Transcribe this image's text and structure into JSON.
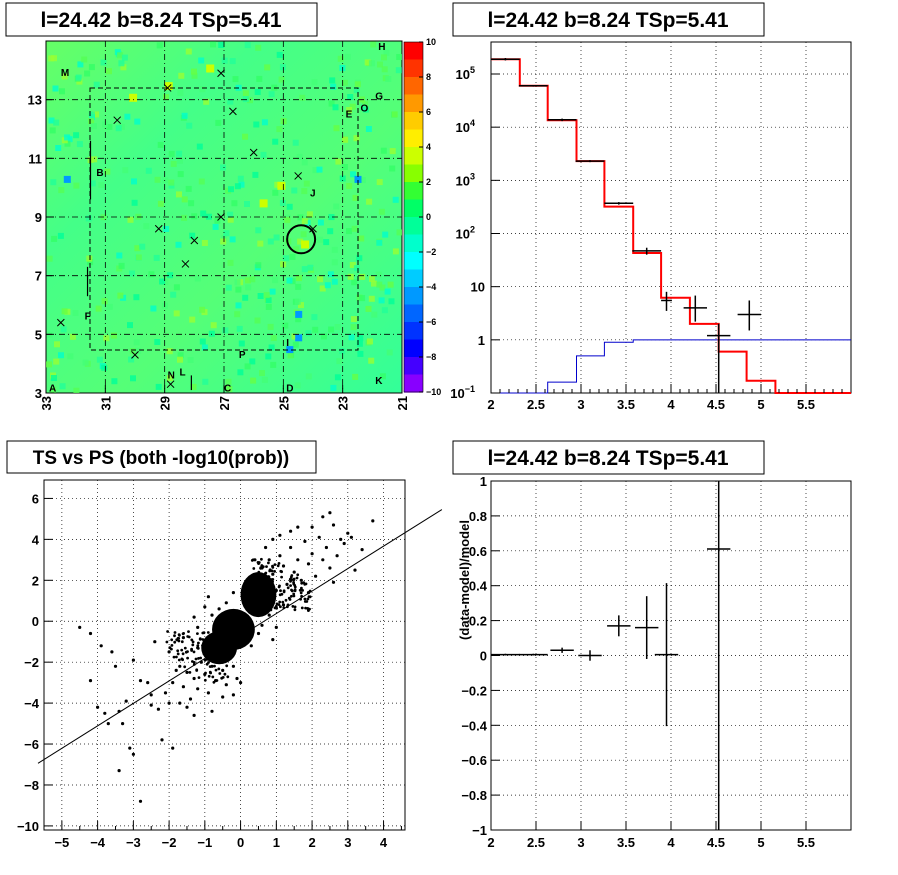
{
  "colors": {
    "model_line": "#ff0000",
    "expected_line": "#0000cc",
    "data_points": "#000000",
    "grid": "#000000"
  },
  "chart_data": [
    {
      "type": "heatmap",
      "title": "l=24.42 b=8.24 TSp=5.41",
      "xlim": [
        33,
        21
      ],
      "ylim": [
        3,
        15
      ],
      "xticks": [
        "33",
        "31",
        "29",
        "27",
        "25",
        "23",
        "21"
      ],
      "yticks": [
        "3",
        "5",
        "7",
        "9",
        "11",
        "13"
      ],
      "colorbar": {
        "range": [
          -10,
          10
        ],
        "ticks": [
          "10",
          "8",
          "6",
          "4",
          "2",
          "0",
          "−2",
          "−4",
          "−6",
          "−8",
          "−10"
        ],
        "colors": [
          "#ff0000",
          "#ff3300",
          "#ff6600",
          "#ff9900",
          "#ffcc00",
          "#ffee00",
          "#ccff00",
          "#88ff00",
          "#33ff33",
          "#00ff66",
          "#00ff99",
          "#00ffcc",
          "#00ffff",
          "#00ccff",
          "#0099ff",
          "#0066ff",
          "#0033ff",
          "#0000ff",
          "#4400ff",
          "#8800ff"
        ]
      },
      "source_labels": [
        {
          "label": "A",
          "x": 32.9,
          "y": 3.05
        },
        {
          "label": "B",
          "x": 31.3,
          "y": 10.4
        },
        {
          "label": "C",
          "x": 27.0,
          "y": 3.05
        },
        {
          "label": "D",
          "x": 24.9,
          "y": 3.05
        },
        {
          "label": "E",
          "x": 22.9,
          "y": 12.4
        },
        {
          "label": "F",
          "x": 31.7,
          "y": 5.5
        },
        {
          "label": "G",
          "x": 21.9,
          "y": 13.0
        },
        {
          "label": "H",
          "x": 21.8,
          "y": 14.7
        },
        {
          "label": "I",
          "x": 24.9,
          "y": 4.6
        },
        {
          "label": "J",
          "x": 24.1,
          "y": 9.7
        },
        {
          "label": "K",
          "x": 21.9,
          "y": 3.3
        },
        {
          "label": "L",
          "x": 28.5,
          "y": 3.6
        },
        {
          "label": "M",
          "x": 32.5,
          "y": 13.8
        },
        {
          "label": "N",
          "x": 28.9,
          "y": 3.5
        },
        {
          "label": "O",
          "x": 22.4,
          "y": 12.6
        },
        {
          "label": "P",
          "x": 26.5,
          "y": 4.2
        }
      ],
      "markers": [
        {
          "x": 32.5,
          "y": 5.4
        },
        {
          "x": 30.6,
          "y": 12.3
        },
        {
          "x": 30.0,
          "y": 4.3
        },
        {
          "x": 28.9,
          "y": 13.4
        },
        {
          "x": 29.2,
          "y": 8.6
        },
        {
          "x": 28.0,
          "y": 8.2
        },
        {
          "x": 28.3,
          "y": 7.4
        },
        {
          "x": 27.1,
          "y": 13.9
        },
        {
          "x": 27.1,
          "y": 9.0
        },
        {
          "x": 26.7,
          "y": 12.6
        },
        {
          "x": 26.0,
          "y": 11.2
        },
        {
          "x": 24.5,
          "y": 10.4
        },
        {
          "x": 24.0,
          "y": 8.6
        },
        {
          "x": 28.8,
          "y": 3.3
        }
      ],
      "circle": {
        "x": 24.4,
        "y": 8.24
      }
    },
    {
      "type": "line",
      "title": "l=24.42 b=8.24 TSp=5.41",
      "xlim": [
        2,
        6
      ],
      "ylim": [
        0.1,
        400000
      ],
      "log_y": true,
      "grid": true,
      "xticks": [
        "2",
        "2.5",
        "3",
        "3.5",
        "4",
        "4.5",
        "5",
        "5.5"
      ],
      "yticks": [
        {
          "v": 0.1,
          "base": "10",
          "exp": "−1"
        },
        {
          "v": 1,
          "base": "1"
        },
        {
          "v": 10,
          "base": "10"
        },
        {
          "v": 100,
          "base": "10",
          "exp": "2"
        },
        {
          "v": 1000,
          "base": "10",
          "exp": "3"
        },
        {
          "v": 10000,
          "base": "10",
          "exp": "4"
        },
        {
          "v": 100000,
          "base": "10",
          "exp": "5"
        }
      ],
      "bin_edges": [
        2.0,
        2.32,
        2.63,
        2.95,
        3.26,
        3.58,
        3.89,
        4.21,
        4.53,
        4.84,
        5.16,
        6.0
      ],
      "model": [
        190000,
        60000,
        13500,
        2300,
        320,
        43,
        6.2,
        2.0,
        0.6,
        0.17,
        0.1
      ],
      "expected": [
        0.1,
        0.1,
        0.16,
        0.5,
        0.9,
        1.0,
        1.0,
        1.0,
        1.0,
        1.0,
        1.0
      ],
      "data": [
        {
          "x": 2.16,
          "y": 190000,
          "ex": 0.16,
          "ey": [
            180000,
            200000
          ]
        },
        {
          "x": 2.47,
          "y": 60000,
          "ex": 0.16,
          "ey": [
            58000,
            62000
          ]
        },
        {
          "x": 2.79,
          "y": 13800,
          "ex": 0.16,
          "ey": [
            13000,
            14500
          ]
        },
        {
          "x": 3.1,
          "y": 2300,
          "ex": 0.16,
          "ey": [
            2200,
            2400
          ]
        },
        {
          "x": 3.42,
          "y": 370,
          "ex": 0.16,
          "ey": [
            350,
            390
          ]
        },
        {
          "x": 3.73,
          "y": 47,
          "ex": 0.16,
          "ey": [
            40,
            54
          ]
        },
        {
          "x": 3.95,
          "y": 5.5,
          "ex": 0.06,
          "ey": [
            3.5,
            8
          ]
        },
        {
          "x": 4.27,
          "y": 4.0,
          "ex": 0.13,
          "ey": [
            2.2,
            6.8
          ]
        },
        {
          "x": 4.53,
          "y": 1.2,
          "ex": 0.13,
          "ey": [
            0.1,
            2.0
          ]
        },
        {
          "x": 4.87,
          "y": 3.0,
          "ex": 0.13,
          "ey": [
            1.5,
            5.5
          ]
        }
      ]
    },
    {
      "type": "scatter",
      "title": "TS vs PS (both -log10(prob))",
      "xlim": [
        -5.5,
        4.6
      ],
      "ylim": [
        -10.2,
        6.9
      ],
      "grid": true,
      "xticks": [
        "−5",
        "−4",
        "−3",
        "−2",
        "−1",
        "0",
        "1",
        "2",
        "3",
        "4"
      ],
      "yticks": [
        "−10",
        "−8",
        "−6",
        "−4",
        "−2",
        "0",
        "2",
        "4",
        "6"
      ],
      "fit_line": {
        "x1": -5.5,
        "y1": -6.6,
        "x2": 5.8,
        "y2": 5.8
      },
      "points": [
        [
          -4.5,
          -0.3
        ],
        [
          -4.2,
          -0.6
        ],
        [
          -4.0,
          -4.2
        ],
        [
          -3.8,
          -4.5
        ],
        [
          -3.7,
          -5.0
        ],
        [
          -3.6,
          -1.5
        ],
        [
          -3.5,
          -2.2
        ],
        [
          -3.4,
          -4.4
        ],
        [
          -3.3,
          -5.0
        ],
        [
          -3.2,
          -3.9
        ],
        [
          -3.1,
          -6.2
        ],
        [
          -3.0,
          -6.5
        ],
        [
          -3.4,
          -7.3
        ],
        [
          -2.8,
          -8.8
        ],
        [
          -2.6,
          -3.0
        ],
        [
          -2.5,
          -4.1
        ],
        [
          -2.3,
          -4.3
        ],
        [
          -2.2,
          -5.8
        ],
        [
          -2.1,
          -3.5
        ],
        [
          -2.0,
          -4.0
        ],
        [
          -1.9,
          -6.2
        ],
        [
          -1.9,
          -3.0
        ],
        [
          -1.8,
          -2.4
        ],
        [
          -1.7,
          -4.0
        ],
        [
          -1.6,
          -3.2
        ],
        [
          -1.5,
          -2.5
        ],
        [
          -1.5,
          -4.2
        ],
        [
          -1.4,
          -3.8
        ],
        [
          -1.3,
          -2.8
        ],
        [
          -1.2,
          -3.3
        ],
        [
          -1.1,
          -2.0
        ],
        [
          -1.0,
          -2.6
        ],
        [
          -0.9,
          -3.5
        ],
        [
          -0.8,
          -2.2
        ],
        [
          -0.7,
          -2.9
        ],
        [
          -0.6,
          -1.8
        ],
        [
          -0.5,
          -2.4
        ],
        [
          -0.4,
          -3.1
        ],
        [
          -0.3,
          -1.5
        ],
        [
          -0.2,
          -2.2
        ],
        [
          -0.1,
          -2.8
        ],
        [
          0.0,
          -3.0
        ],
        [
          -0.2,
          -3.6
        ],
        [
          -2.4,
          -1.0
        ],
        [
          -2.0,
          -1.5
        ],
        [
          -1.6,
          -0.8
        ],
        [
          -1.2,
          -1.3
        ],
        [
          -3.0,
          -1.9
        ],
        [
          -2.8,
          -2.9
        ],
        [
          -2.5,
          -3.6
        ],
        [
          -1.7,
          -2.2
        ],
        [
          -1.3,
          -4.6
        ],
        [
          -0.8,
          -4.4
        ],
        [
          -0.5,
          -3.7
        ],
        [
          -4.2,
          -2.9
        ],
        [
          -3.9,
          -1.2
        ],
        [
          0.2,
          0.9
        ],
        [
          0.3,
          1.6
        ],
        [
          0.4,
          2.2
        ],
        [
          0.5,
          1.1
        ],
        [
          0.6,
          2.6
        ],
        [
          0.7,
          1.9
        ],
        [
          0.8,
          3.0
        ],
        [
          0.9,
          2.3
        ],
        [
          1.0,
          1.5
        ],
        [
          1.1,
          3.2
        ],
        [
          1.2,
          2.7
        ],
        [
          1.3,
          1.8
        ],
        [
          1.4,
          3.6
        ],
        [
          1.5,
          2.4
        ],
        [
          1.6,
          3.0
        ],
        [
          1.7,
          2.0
        ],
        [
          1.8,
          3.9
        ],
        [
          1.9,
          2.8
        ],
        [
          2.0,
          3.3
        ],
        [
          2.1,
          2.2
        ],
        [
          2.2,
          4.1
        ],
        [
          2.3,
          3.0
        ],
        [
          2.4,
          3.6
        ],
        [
          2.5,
          2.6
        ],
        [
          2.6,
          4.7
        ],
        [
          2.7,
          3.2
        ],
        [
          2.8,
          4.0
        ],
        [
          3.0,
          4.3
        ],
        [
          3.2,
          2.5
        ],
        [
          3.7,
          4.9
        ],
        [
          2.3,
          5.1
        ],
        [
          2.9,
          3.8
        ],
        [
          1.1,
          4.2
        ],
        [
          0.7,
          3.6
        ],
        [
          0.4,
          3.0
        ],
        [
          1.6,
          4.6
        ],
        [
          2.5,
          5.3
        ],
        [
          2.0,
          4.6
        ],
        [
          1.4,
          4.4
        ],
        [
          0.9,
          4.0
        ],
        [
          3.4,
          3.5
        ],
        [
          3.1,
          4.1
        ],
        [
          1.9,
          1.4
        ],
        [
          2.6,
          1.9
        ],
        [
          1.2,
          0.8
        ],
        [
          0.6,
          -0.2
        ],
        [
          0.8,
          0.3
        ],
        [
          1.0,
          -0.3
        ],
        [
          0.5,
          -0.6
        ],
        [
          -0.6,
          0.6
        ],
        [
          -0.8,
          0.3
        ],
        [
          -1.0,
          0.7
        ],
        [
          -1.2,
          -0.3
        ],
        [
          -0.4,
          0.9
        ],
        [
          -0.9,
          1.2
        ],
        [
          -1.3,
          0.2
        ],
        [
          -0.2,
          1.4
        ],
        [
          0.9,
          -0.9
        ],
        [
          0.3,
          -1.2
        ],
        [
          -0.3,
          -0.9
        ],
        [
          -0.7,
          -1.4
        ]
      ],
      "blobs": [
        {
          "x": -0.2,
          "y": -0.4,
          "rx": 0.6,
          "ry": 1.0
        },
        {
          "x": 0.5,
          "y": 1.3,
          "rx": 0.5,
          "ry": 1.1
        },
        {
          "x": -0.6,
          "y": -1.3,
          "rx": 0.5,
          "ry": 0.8
        }
      ]
    },
    {
      "type": "scatter",
      "title": "l=24.42 b=8.24 TSp=5.41",
      "ylabel": "(data-model)/model",
      "xlim": [
        2,
        6
      ],
      "ylim": [
        -1,
        1
      ],
      "grid": true,
      "xticks": [
        "2",
        "2.5",
        "3",
        "3.5",
        "4",
        "4.5",
        "5",
        "5.5"
      ],
      "yticks": [
        "1",
        "0.8",
        "0.6",
        "0.4",
        "0.2",
        "0",
        "−0.2",
        "−0.4",
        "−0.6",
        "−0.8",
        "−1"
      ],
      "data": [
        {
          "x": 2.16,
          "y": 0.005,
          "ex": 0.16,
          "ey": 0.005
        },
        {
          "x": 2.47,
          "y": 0.005,
          "ex": 0.16,
          "ey": 0.005
        },
        {
          "x": 2.79,
          "y": 0.03,
          "ex": 0.13,
          "ey": 0.015
        },
        {
          "x": 3.1,
          "y": 0.0,
          "ex": 0.13,
          "ey": 0.03
        },
        {
          "x": 3.42,
          "y": 0.17,
          "ex": 0.13,
          "ey": 0.06
        },
        {
          "x": 3.73,
          "y": 0.16,
          "ex": 0.13,
          "ey": 0.18
        },
        {
          "x": 3.95,
          "y": 0.005,
          "ex": 0.13,
          "ey": 0.41
        },
        {
          "x": 4.53,
          "y": 0.61,
          "ex": 0.13,
          "ey": 1.7
        }
      ]
    }
  ]
}
